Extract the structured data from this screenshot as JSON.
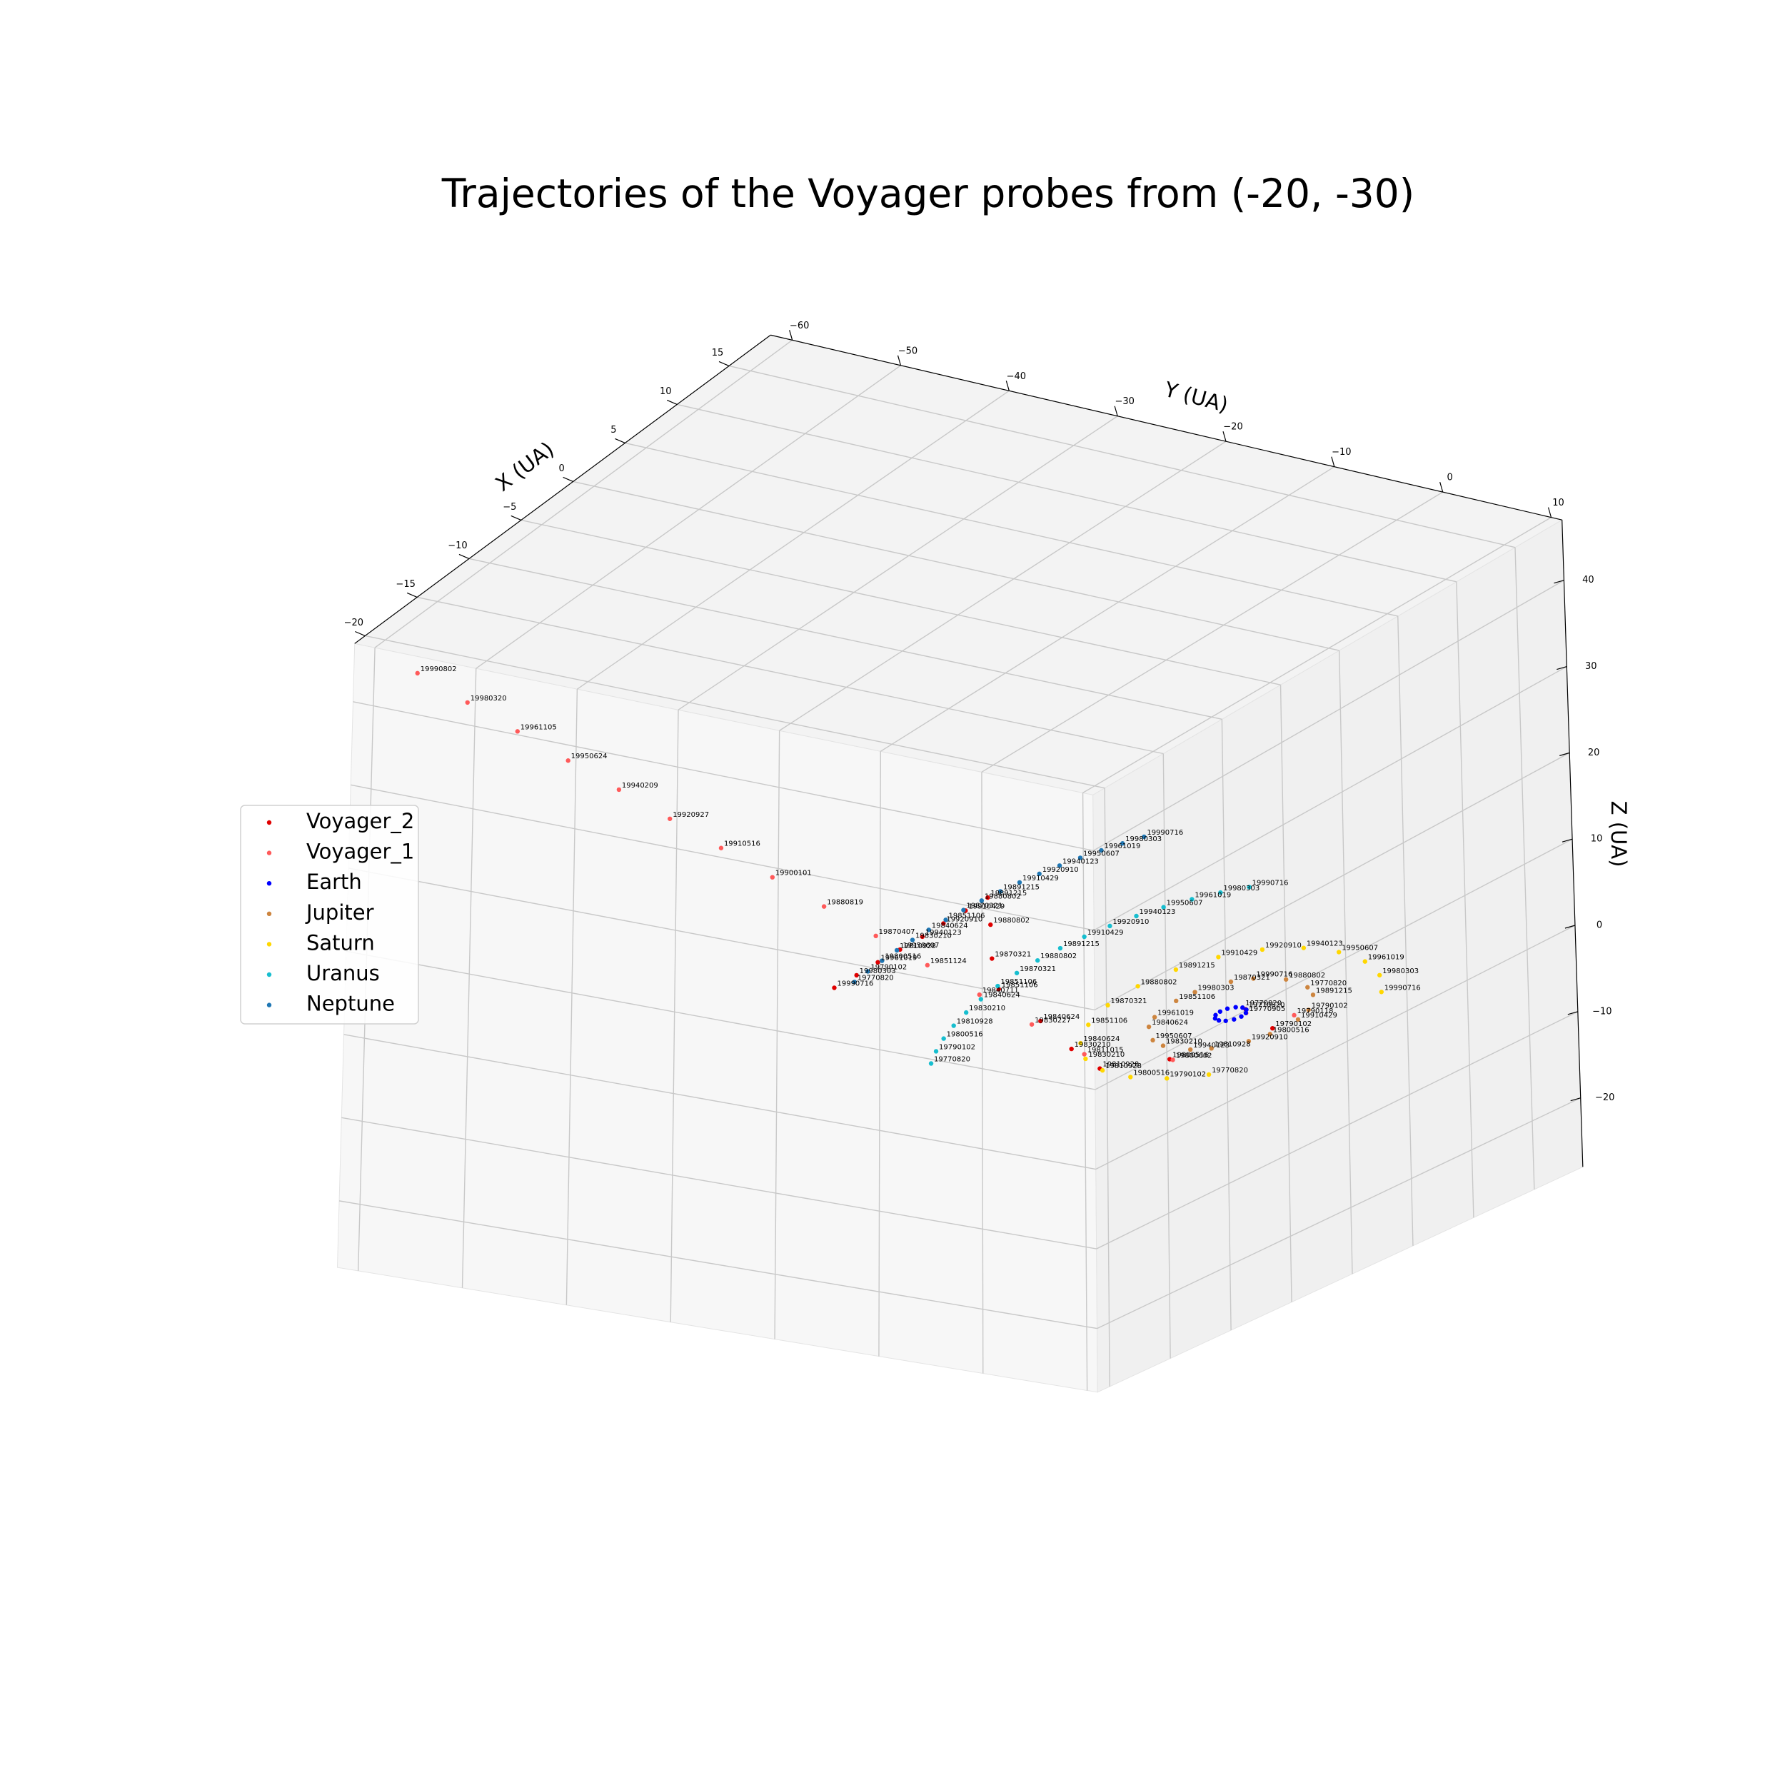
{
  "chart_data": {
    "type": "scatter3d",
    "title": "Trajectories of the Voyager probes from (-20, -30)",
    "xlabel": "X (UA)",
    "ylabel": "Y (UA)",
    "zlabel": "Z (UA)",
    "xlim": [
      -21,
      19
    ],
    "ylim": [
      -62,
      11
    ],
    "zlim": [
      -28,
      47
    ],
    "xticks": [
      {
        "value": -20,
        "label": "−20"
      },
      {
        "value": -15,
        "label": "−15"
      },
      {
        "value": -10,
        "label": "−10"
      },
      {
        "value": -5,
        "label": "−5"
      },
      0,
      5,
      10,
      15
    ],
    "yticks": [
      {
        "value": -60,
        "label": "−60"
      },
      {
        "value": -50,
        "label": "−50"
      },
      {
        "value": -40,
        "label": "−40"
      },
      {
        "value": -30,
        "label": "−30"
      },
      {
        "value": -20,
        "label": "−20"
      },
      {
        "value": -10,
        "label": "−10"
      },
      0,
      10
    ],
    "zticks": [
      {
        "value": -20,
        "label": "−20"
      },
      {
        "value": -10,
        "label": "−10"
      },
      0,
      10,
      20,
      30,
      40
    ],
    "grid": true,
    "legend": "center left",
    "series": [
      {
        "name": "Voyager_2",
        "color": "#e00000",
        "x": [
          0.9,
          -0.5,
          -6.5,
          -9.3,
          -7.7,
          -5.4,
          -3.0,
          0.0,
          3.4,
          6.52,
          6.62,
          6.72,
          6.82,
          6.91,
          7.01,
          7.1,
          7.2
        ],
        "y": [
          0.4,
          4.5,
          1.5,
          -2.0,
          -6.5,
          -12.0,
          -18.6,
          -22.5,
          -26.3,
          -29.9,
          -32.1,
          -34.3,
          -36.4,
          -38.6,
          -40.8,
          -42.9,
          -45.1
        ],
        "z": [
          0,
          0,
          0,
          0.1,
          0,
          0,
          0,
          0,
          0,
          -0.6,
          -3.0,
          -5.4,
          -7.8,
          -10.2,
          -12.6,
          -15.0,
          -17.4
        ],
        "point_labels": [
          "19770820",
          "19790102",
          "19800516",
          "19810928",
          "19830210",
          "19840624",
          "19851106",
          "19870321",
          "19880802",
          "19891215",
          "19910429",
          "19920910",
          "19940123",
          "19950607",
          "19961019",
          "19980303",
          "19990716"
        ]
      },
      {
        "name": "Voyager_1",
        "color": "#ff5a5a",
        "x": [
          0.5,
          1.5,
          -6.5,
          -9.76,
          -10.31,
          -10.85,
          -11.39,
          -11.93,
          -12.47,
          -13.02,
          -13.56,
          -14.1,
          -14.64,
          -15.19,
          -15.73,
          -16.27,
          -16.8
        ],
        "y": [
          0.9,
          4.3,
          1.8,
          -2.95,
          -7.34,
          -11.74,
          -16.13,
          -20.49,
          -24.89,
          -29.28,
          -33.67,
          -38.07,
          -42.46,
          -46.85,
          -51.25,
          -55.61,
          -60
        ],
        "z": [
          0,
          0,
          0,
          1.97,
          4.9,
          7.83,
          10.75,
          13.66,
          16.59,
          19.52,
          22.45,
          25.38,
          28.31,
          31.24,
          34.17,
          37.07,
          40
        ],
        "point_labels": [
          "19770905",
          "19790118",
          "19800602",
          "19811015",
          "19830227",
          "19840711",
          "19851124",
          "19870407",
          "19880819",
          "19900101",
          "19910516",
          "19920927",
          "19940209",
          "19950624",
          "19961105",
          "19980320",
          "19990802"
        ]
      },
      {
        "name": "Earth",
        "color": "#0000ff",
        "x": [
          1,
          0.87,
          0.5,
          0,
          -0.5,
          -0.87,
          -1,
          -0.87,
          -0.5,
          0,
          0.5,
          0.87
        ],
        "y": [
          0,
          0.5,
          0.87,
          1,
          0.87,
          0.5,
          0,
          -0.5,
          -0.87,
          -1,
          -0.87,
          -0.5
        ],
        "z": [
          0,
          0,
          0,
          0,
          0,
          0,
          0,
          0,
          0,
          0,
          0,
          0
        ],
        "point_labels": [
          "19770820",
          null,
          null,
          null,
          null,
          null,
          null,
          null,
          null,
          null,
          null,
          null
        ]
      },
      {
        "name": "Jupiter",
        "color": "#cd853f",
        "x": [
          4.89,
          2.46,
          -1.21,
          -4.27,
          -5.16,
          -3.43,
          0.05,
          3.49,
          5.17,
          4.22,
          1.13,
          -2.54,
          -4.92,
          -4.8,
          -2.24,
          1.46,
          4.41
        ],
        "y": [
          1.78,
          4.58,
          5.06,
          2.96,
          -0.63,
          -3.91,
          -5.2,
          -3.85,
          -0.54,
          3.04,
          5.08,
          4.54,
          1.69,
          -2.01,
          -4.69,
          -4.99,
          -2.76
        ],
        "z": [
          0,
          0,
          0,
          0,
          0,
          0,
          0,
          0,
          0,
          0,
          0,
          0,
          0,
          0,
          0,
          0,
          0
        ],
        "point_labels": [
          "19770820",
          "19790102",
          "19800516",
          "19810928",
          "19830210",
          "19840624",
          "19851106",
          "19870321",
          "19880802",
          "19891215",
          "19910429",
          "19920910",
          "19940123",
          "19950607",
          "19961019",
          "19980303",
          "19990716"
        ]
      },
      {
        "name": "Saturn",
        "color": "#ffd700",
        "x": [
          -7.28,
          -8.73,
          -9.44,
          -9.35,
          -8.46,
          -6.86,
          -4.67,
          -2.1,
          0.66,
          3.37,
          5.78,
          7.71,
          8.98,
          9.49,
          9.2,
          8.13,
          6.36
        ],
        "y": [
          6.11,
          3.75,
          1.08,
          -1.69,
          -4.31,
          -6.57,
          -8.27,
          -9.27,
          -9.48,
          -8.88,
          -7.54,
          -5.55,
          -3.09,
          -0.37,
          2.38,
          4.92,
          7.06
        ],
        "z": [
          0,
          0,
          0,
          0,
          0,
          0,
          0,
          0,
          0,
          0,
          0,
          0,
          0,
          0,
          0,
          0,
          0
        ],
        "point_labels": [
          "19770820",
          "19790102",
          "19800516",
          "19810928",
          "19830210",
          "19840624",
          "19851106",
          "19870321",
          "19880802",
          "19891215",
          "19910429",
          "19920910",
          "19940123",
          "19950607",
          "19961019",
          "19980303",
          "19990716"
        ]
      },
      {
        "name": "Uranus",
        "color": "#17becf",
        "x": [
          -12.47,
          -11.04,
          -9.5,
          -7.9,
          -6.22,
          -4.48,
          -2.71,
          -0.9,
          0.9,
          2.71,
          4.48,
          6.22,
          7.9,
          9.5,
          11.04,
          12.47,
          13.79
        ],
        "y": [
          -14.6,
          -15.71,
          -16.69,
          -17.5,
          -18.16,
          -18.67,
          -19.01,
          -19.18,
          -19.18,
          -19.01,
          -18.67,
          -18.16,
          -17.5,
          -16.69,
          -15.71,
          -14.6,
          -13.36
        ],
        "z": [
          0,
          0,
          0,
          0,
          0,
          0,
          0,
          0,
          0,
          0,
          0,
          0,
          0,
          0,
          0,
          0,
          0
        ],
        "point_labels": [
          "19770820",
          "19790102",
          "19800516",
          "19810928",
          "19830210",
          "19840624",
          "19851106",
          "19870321",
          "19880802",
          "19891215",
          "19910429",
          "19920910",
          "19940123",
          "19950607",
          "19961019",
          "19980303",
          "19990716"
        ]
      },
      {
        "name": "Neptune",
        "color": "#1f77b4",
        "x": [
          -5.57,
          -4.19,
          -2.79,
          -1.39,
          0.01,
          1.41,
          2.81,
          4.21,
          5.59,
          6.96,
          8.32,
          9.66,
          10.98,
          12.27,
          13.54,
          14.77,
          15.98
        ],
        "y": [
          -29.48,
          -29.71,
          -29.87,
          -29.97,
          -30.0,
          -29.97,
          -29.87,
          -29.7,
          -29.47,
          -29.18,
          -28.83,
          -28.41,
          -27.93,
          -27.38,
          -26.77,
          -26.11,
          -25.4
        ],
        "z": [
          0,
          0,
          0,
          0,
          0,
          0,
          0,
          0,
          0,
          0,
          0,
          0,
          0,
          0,
          0,
          0,
          0
        ],
        "point_labels": [
          "19770820",
          "19790102",
          "19800516",
          "19810928",
          "19830210",
          "19840624",
          "19851106",
          "19870321",
          "19880802",
          "19891215",
          "19910429",
          "19920910",
          "19940123",
          "19950607",
          "19961019",
          "19980303",
          "19990716"
        ]
      }
    ]
  }
}
